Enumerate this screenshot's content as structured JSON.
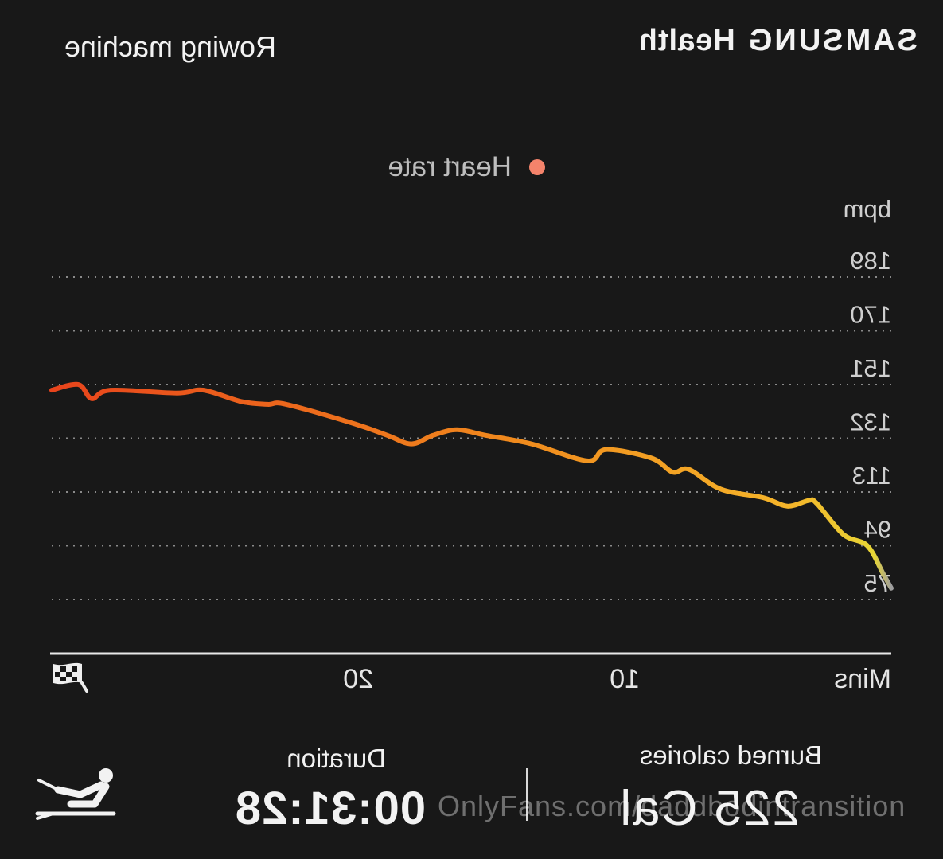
{
  "header": {
    "brand_primary": "SAMSUNG",
    "brand_secondary": "Health",
    "title": "Rowing machine"
  },
  "legend": {
    "label": "Heart rate",
    "color": "#f4836b"
  },
  "chart_data": {
    "type": "line",
    "title": "",
    "ylabel": "bpm",
    "xlabel": "Mins",
    "yticks": [
      "189",
      "170",
      "151",
      "132",
      "113",
      "94",
      "75"
    ],
    "ytick_values": [
      189,
      170,
      151,
      132,
      113,
      94,
      75
    ],
    "xticks": [
      "10",
      "20"
    ],
    "xtick_values": [
      10,
      20
    ],
    "ylim": [
      75,
      189
    ],
    "xlim": [
      0,
      31.5
    ],
    "grid": true,
    "series": [
      {
        "name": "Heart rate",
        "color_start": "#9e9e9e",
        "color_mid": "#f6b21f",
        "color_end": "#e8441c",
        "x": [
          0,
          0.3,
          0.9,
          1.8,
          2.8,
          3.1,
          3.9,
          4.8,
          6.4,
          7.6,
          8.2,
          9.0,
          10.7,
          11.4,
          13.5,
          15.2,
          16.3,
          17.2,
          18.0,
          18.9,
          20.1,
          22.7,
          23.4,
          24.4,
          25.8,
          26.8,
          29.3,
          30.0,
          30.5,
          31.5
        ],
        "y": [
          79,
          84,
          94,
          98,
          109,
          110,
          108,
          111,
          114,
          121,
          120,
          125,
          128,
          124,
          130,
          133,
          135,
          133,
          130,
          133,
          137,
          144,
          144,
          145,
          149,
          148,
          149,
          146,
          151,
          149
        ]
      }
    ]
  },
  "stats": {
    "calories_label": "Burned calories",
    "calories_value": "225 Cal",
    "duration_label": "Duration",
    "duration_value": "00:31:28"
  },
  "icons": {
    "activity": "rowing-machine-icon",
    "finish": "checkered-flag-icon"
  },
  "watermark": "OnlyFans.com/daddbodintransition"
}
